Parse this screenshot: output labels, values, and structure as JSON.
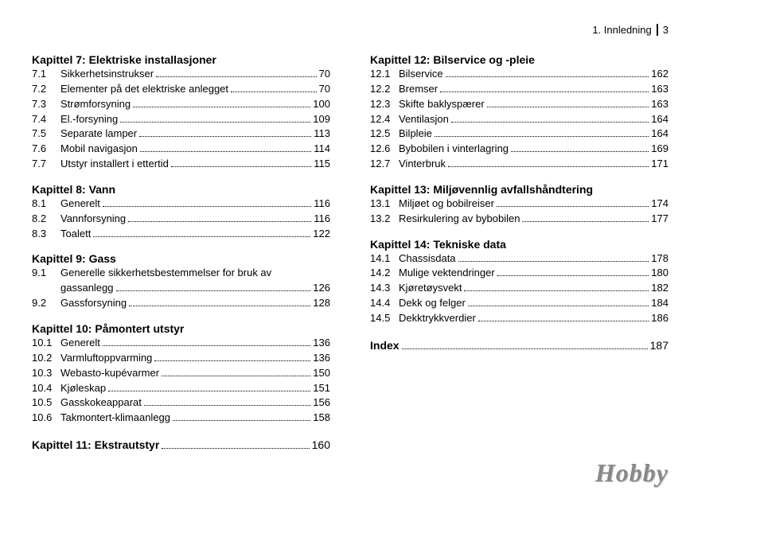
{
  "header": {
    "section": "1. Innledning",
    "page": "3"
  },
  "leftColumn": [
    {
      "type": "title",
      "text": "Kapittel 7: Elektriske installasjoner"
    },
    {
      "type": "entry",
      "num": "7.1",
      "label": "Sikkerhetsinstrukser",
      "page": "70"
    },
    {
      "type": "entry",
      "num": "7.2",
      "label": "Elementer på det elektriske anlegget",
      "page": "70"
    },
    {
      "type": "entry",
      "num": "7.3",
      "label": "Strømforsyning",
      "page": "100"
    },
    {
      "type": "entry",
      "num": "7.4",
      "label": "El.-forsyning",
      "page": "109"
    },
    {
      "type": "entry",
      "num": "7.5",
      "label": "Separate lamper",
      "page": "113"
    },
    {
      "type": "entry",
      "num": "7.6",
      "label": "Mobil navigasjon",
      "page": "114"
    },
    {
      "type": "entry",
      "num": "7.7",
      "label": "Utstyr installert i ettertid",
      "page": "115"
    },
    {
      "type": "title",
      "text": "Kapittel 8: Vann"
    },
    {
      "type": "entry",
      "num": "8.1",
      "label": "Generelt",
      "page": "116"
    },
    {
      "type": "entry",
      "num": "8.2",
      "label": "Vannforsyning",
      "page": "116"
    },
    {
      "type": "entry",
      "num": "8.3",
      "label": "Toalett",
      "page": "122"
    },
    {
      "type": "title",
      "text": "Kapittel 9: Gass"
    },
    {
      "type": "entry",
      "num": "9.1",
      "label": "Generelle sikkerhetsbestemmelser for bruk av gassanlegg",
      "page": "126",
      "wrap": true
    },
    {
      "type": "entry",
      "num": "9.2",
      "label": "Gassforsyning",
      "page": "128"
    },
    {
      "type": "title",
      "text": "Kapittel 10: Påmontert utstyr"
    },
    {
      "type": "entry",
      "num": "10.1",
      "label": "Generelt",
      "page": "136"
    },
    {
      "type": "entry",
      "num": "10.2",
      "label": "Varmluftoppvarming",
      "page": "136"
    },
    {
      "type": "entry",
      "num": "10.3",
      "label": "Webasto-kupévarmer",
      "page": "150"
    },
    {
      "type": "entry",
      "num": "10.4",
      "label": "Kjøleskap",
      "page": "151"
    },
    {
      "type": "entry",
      "num": "10.5",
      "label": "Gasskokeapparat",
      "page": "156"
    },
    {
      "type": "entry",
      "num": "10.6",
      "label": "Takmontert-klimaanlegg",
      "page": "158"
    },
    {
      "type": "title-entry",
      "label": "Kapittel 11: Ekstrautstyr",
      "page": "160"
    }
  ],
  "rightColumn": [
    {
      "type": "title",
      "text": "Kapittel 12: Bilservice og -pleie"
    },
    {
      "type": "entry",
      "num": "12.1",
      "label": "Bilservice",
      "page": "162"
    },
    {
      "type": "entry",
      "num": "12.2",
      "label": "Bremser",
      "page": "163"
    },
    {
      "type": "entry",
      "num": "12.3",
      "label": "Skifte baklyspærer",
      "page": "163"
    },
    {
      "type": "entry",
      "num": "12.4",
      "label": "Ventilasjon",
      "page": "164"
    },
    {
      "type": "entry",
      "num": "12.5",
      "label": "Bilpleie",
      "page": "164"
    },
    {
      "type": "entry",
      "num": "12.6",
      "label": "Bybobilen i vinterlagring",
      "page": "169"
    },
    {
      "type": "entry",
      "num": "12.7",
      "label": "Vinterbruk",
      "page": "171"
    },
    {
      "type": "title",
      "text": "Kapittel 13: Miljøvennlig avfallshåndtering"
    },
    {
      "type": "entry",
      "num": "13.1",
      "label": "Miljøet og bobilreiser",
      "page": "174"
    },
    {
      "type": "entry",
      "num": "13.2",
      "label": "Resirkulering av bybobilen",
      "page": "177"
    },
    {
      "type": "title",
      "text": "Kapittel 14: Tekniske data"
    },
    {
      "type": "entry",
      "num": "14.1",
      "label": "Chassisdata",
      "page": "178"
    },
    {
      "type": "entry",
      "num": "14.2",
      "label": "Mulige vektendringer",
      "page": "180"
    },
    {
      "type": "entry",
      "num": "14.3",
      "label": "Kjøretøysvekt",
      "page": "182"
    },
    {
      "type": "entry",
      "num": "14.4",
      "label": "Dekk og felger",
      "page": "184"
    },
    {
      "type": "entry",
      "num": "14.5",
      "label": "Dekktrykkverdier",
      "page": "186"
    },
    {
      "type": "title-entry",
      "label": "Index",
      "page": "187"
    }
  ],
  "logo": "Hobby"
}
